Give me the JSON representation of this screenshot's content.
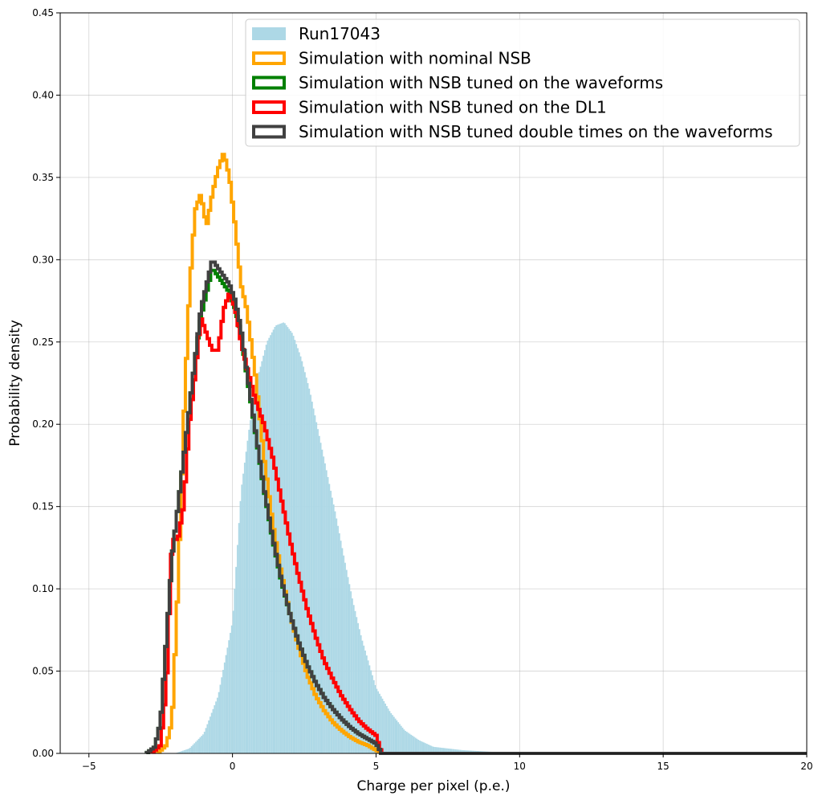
{
  "chart_data": {
    "type": "histogram",
    "title": "",
    "xlabel": "Charge per pixel (p.e.)",
    "ylabel": "Probability density",
    "xlim": [
      -6,
      20
    ],
    "ylim": [
      0,
      0.45
    ],
    "xticks": [
      -5,
      0,
      5,
      10,
      15,
      20
    ],
    "yticks": [
      0.0,
      0.05,
      0.1,
      0.15,
      0.2,
      0.25,
      0.3,
      0.35,
      0.4,
      0.45
    ],
    "xtick_labels": [
      "−5",
      "0",
      "5",
      "10",
      "15",
      "20"
    ],
    "ytick_labels": [
      "0.00",
      "0.05",
      "0.10",
      "0.15",
      "0.20",
      "0.25",
      "0.30",
      "0.35",
      "0.40",
      "0.45"
    ],
    "grid": true,
    "legend_position": "top-right",
    "series": [
      {
        "name": "Run17043",
        "style": "filled",
        "color": "#add8e6",
        "x": [
          -2.0,
          -1.5,
          -1.0,
          -0.5,
          0.0,
          0.3,
          0.6,
          0.9,
          1.2,
          1.5,
          1.8,
          2.1,
          2.4,
          2.7,
          3.0,
          3.3,
          3.6,
          3.9,
          4.2,
          4.5,
          4.8,
          5.0,
          5.5,
          6.0,
          6.5,
          7.0,
          8.0,
          9.0,
          10.0,
          12.0,
          20.0
        ],
        "y": [
          0.0,
          0.003,
          0.012,
          0.035,
          0.08,
          0.16,
          0.2,
          0.23,
          0.25,
          0.26,
          0.262,
          0.255,
          0.24,
          0.22,
          0.195,
          0.17,
          0.145,
          0.118,
          0.092,
          0.07,
          0.052,
          0.04,
          0.025,
          0.014,
          0.008,
          0.004,
          0.002,
          0.001,
          0.0005,
          0.0002,
          0.0
        ]
      },
      {
        "name": "Simulation with nominal NSB",
        "style": "step",
        "color": "#ffa500",
        "x": [
          -2.6,
          -2.3,
          -2.1,
          -1.9,
          -1.7,
          -1.5,
          -1.3,
          -1.1,
          -0.9,
          -0.7,
          -0.5,
          -0.3,
          -0.1,
          0.1,
          0.3,
          0.5,
          0.8,
          1.1,
          1.4,
          1.7,
          2.0,
          2.3,
          2.6,
          2.9,
          3.2,
          3.5,
          3.8,
          4.1,
          4.4,
          4.7,
          5.0,
          5.2,
          6.0,
          8.0,
          20.0
        ],
        "y": [
          0.0,
          0.005,
          0.02,
          0.1,
          0.2,
          0.28,
          0.33,
          0.34,
          0.32,
          0.34,
          0.355,
          0.365,
          0.35,
          0.32,
          0.285,
          0.27,
          0.23,
          0.18,
          0.14,
          0.11,
          0.085,
          0.065,
          0.048,
          0.035,
          0.026,
          0.019,
          0.014,
          0.01,
          0.007,
          0.005,
          0.002,
          0.0,
          0.0,
          0.0,
          0.0
        ]
      },
      {
        "name": "Simulation with NSB tuned on the waveforms",
        "style": "step",
        "color": "#008000",
        "x": [
          -3.0,
          -2.7,
          -2.5,
          -2.3,
          -2.1,
          -1.9,
          -1.7,
          -1.5,
          -1.3,
          -1.1,
          -0.9,
          -0.7,
          -0.5,
          -0.3,
          -0.1,
          0.1,
          0.3,
          0.5,
          0.8,
          1.1,
          1.4,
          1.7,
          2.0,
          2.3,
          2.6,
          2.9,
          3.2,
          3.5,
          3.8,
          4.1,
          4.4,
          4.7,
          5.0,
          5.2,
          6.0,
          8.0,
          20.0
        ],
        "y": [
          0.0,
          0.004,
          0.02,
          0.07,
          0.12,
          0.15,
          0.18,
          0.21,
          0.24,
          0.265,
          0.28,
          0.295,
          0.29,
          0.285,
          0.28,
          0.27,
          0.255,
          0.23,
          0.195,
          0.16,
          0.13,
          0.105,
          0.085,
          0.068,
          0.054,
          0.043,
          0.034,
          0.027,
          0.021,
          0.016,
          0.012,
          0.009,
          0.006,
          0.0,
          0.0,
          0.0,
          0.0
        ]
      },
      {
        "name": "Simulation with NSB tuned on the DL1",
        "style": "step",
        "color": "#ff0000",
        "x": [
          -2.8,
          -2.5,
          -2.3,
          -2.1,
          -1.9,
          -1.7,
          -1.5,
          -1.3,
          -1.1,
          -0.9,
          -0.7,
          -0.5,
          -0.3,
          -0.1,
          0.1,
          0.3,
          0.5,
          0.8,
          1.1,
          1.4,
          1.7,
          2.0,
          2.3,
          2.6,
          2.9,
          3.2,
          3.5,
          3.8,
          4.1,
          4.4,
          4.7,
          5.0,
          5.2,
          6.0,
          8.0,
          20.0
        ],
        "y": [
          0.0,
          0.005,
          0.04,
          0.13,
          0.13,
          0.15,
          0.2,
          0.23,
          0.265,
          0.255,
          0.245,
          0.245,
          0.27,
          0.28,
          0.27,
          0.25,
          0.235,
          0.215,
          0.2,
          0.18,
          0.155,
          0.13,
          0.108,
          0.088,
          0.071,
          0.056,
          0.045,
          0.035,
          0.027,
          0.02,
          0.015,
          0.011,
          0.0,
          0.0,
          0.0,
          0.0
        ]
      },
      {
        "name": "Simulation with NSB tuned double times on the waveforms",
        "style": "step",
        "color": "#404040",
        "x": [
          -3.0,
          -2.7,
          -2.5,
          -2.3,
          -2.1,
          -1.9,
          -1.7,
          -1.5,
          -1.3,
          -1.1,
          -0.9,
          -0.7,
          -0.5,
          -0.3,
          -0.1,
          0.1,
          0.3,
          0.5,
          0.8,
          1.1,
          1.4,
          1.7,
          2.0,
          2.3,
          2.6,
          2.9,
          3.2,
          3.5,
          3.8,
          4.1,
          4.4,
          4.7,
          5.0,
          5.2,
          6.0,
          8.0,
          20.0
        ],
        "y": [
          0.0,
          0.004,
          0.02,
          0.07,
          0.12,
          0.15,
          0.18,
          0.21,
          0.24,
          0.27,
          0.285,
          0.3,
          0.295,
          0.29,
          0.285,
          0.275,
          0.258,
          0.232,
          0.196,
          0.161,
          0.131,
          0.106,
          0.085,
          0.068,
          0.054,
          0.043,
          0.034,
          0.027,
          0.021,
          0.016,
          0.012,
          0.009,
          0.006,
          0.0,
          0.0,
          0.0,
          0.0
        ]
      }
    ]
  }
}
